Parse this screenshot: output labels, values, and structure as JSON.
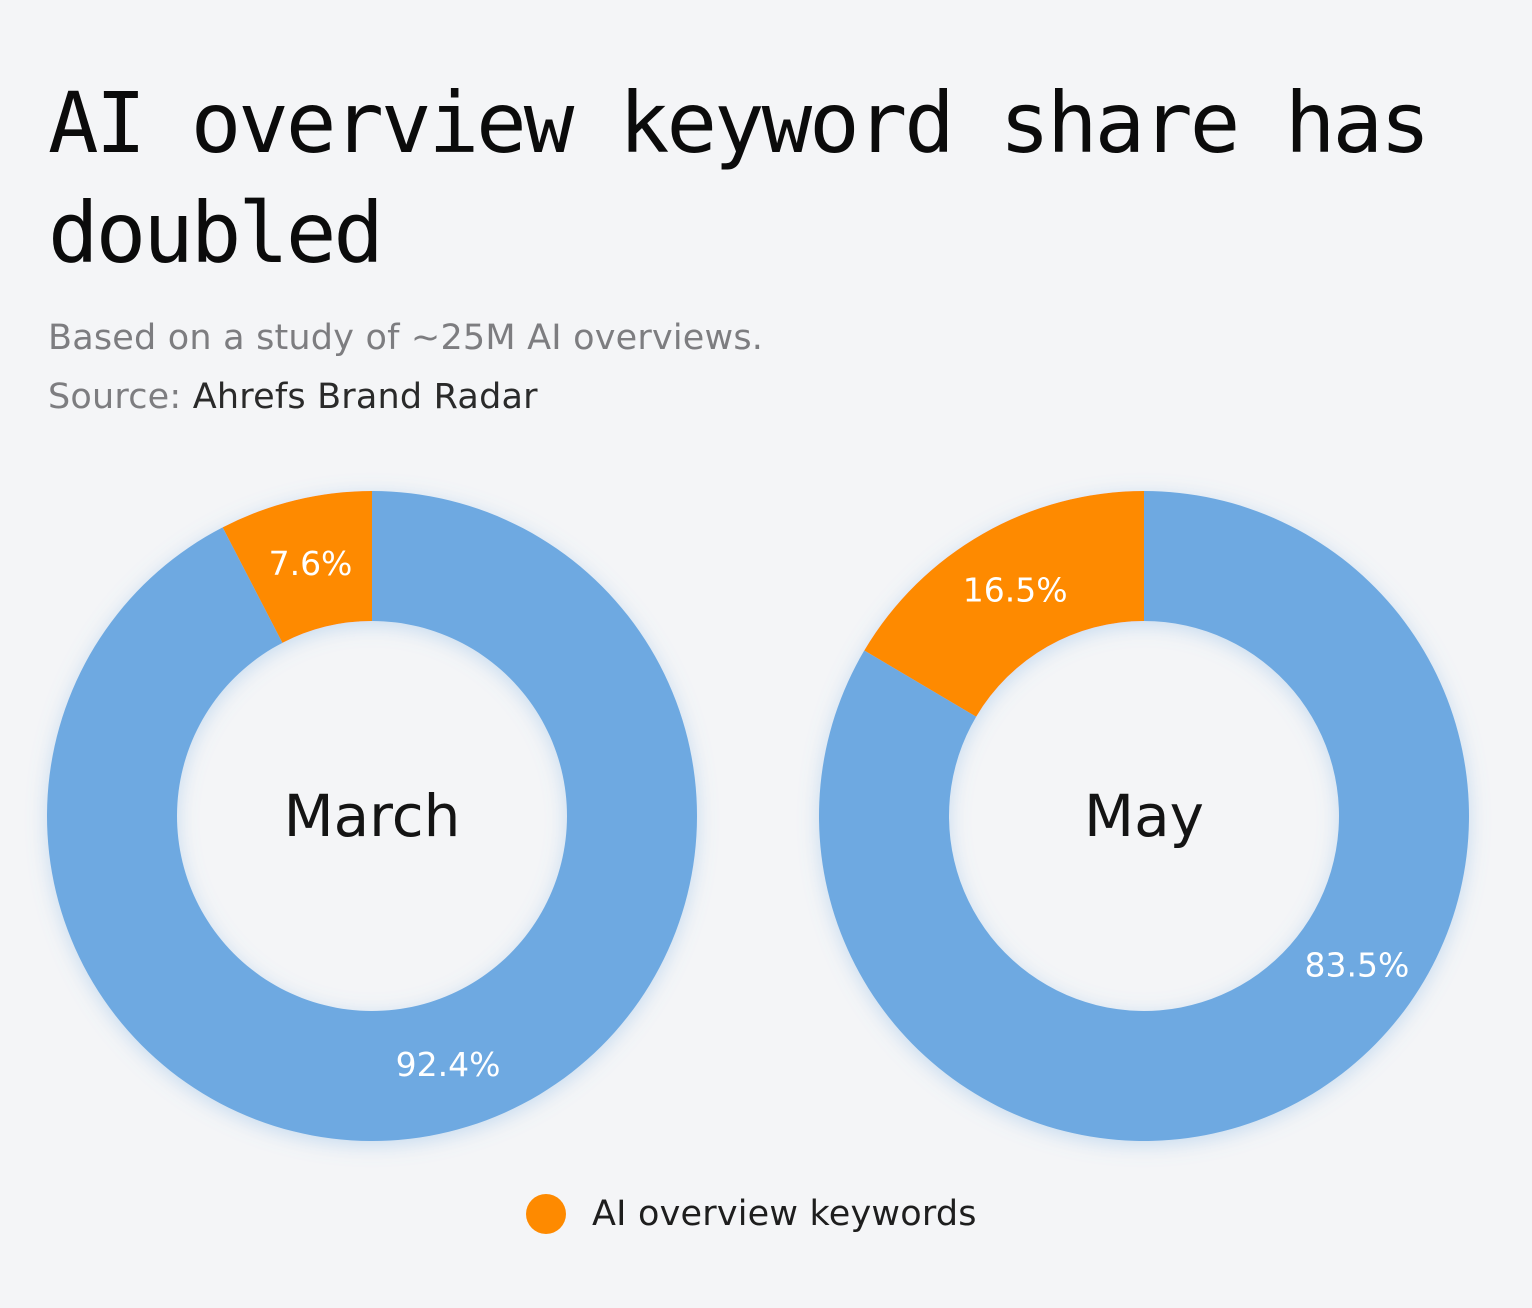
{
  "title": "AI overview keyword share has doubled",
  "subtitle": "Based on a study of ~25M AI overviews.",
  "source": {
    "label": "Source:",
    "value": "Ahrefs Brand Radar"
  },
  "colors": {
    "ai_overview": "#fe8a00",
    "other": "#6ea9e1",
    "background": "#f4f5f7"
  },
  "legend": {
    "label": "AI overview keywords",
    "color": "#fe8a00"
  },
  "chart_data": [
    {
      "type": "pie",
      "variant": "donut",
      "center_label": "March",
      "slices": [
        {
          "label": "7.6%",
          "value": 7.6,
          "color": "#fe8a00",
          "legend": "AI overview keywords"
        },
        {
          "label": "92.4%",
          "value": 92.4,
          "color": "#6ea9e1"
        }
      ]
    },
    {
      "type": "pie",
      "variant": "donut",
      "center_label": "May",
      "slices": [
        {
          "label": "16.5%",
          "value": 16.5,
          "color": "#fe8a00",
          "legend": "AI overview keywords"
        },
        {
          "label": "83.5%",
          "value": 83.5,
          "color": "#6ea9e1"
        }
      ]
    }
  ]
}
